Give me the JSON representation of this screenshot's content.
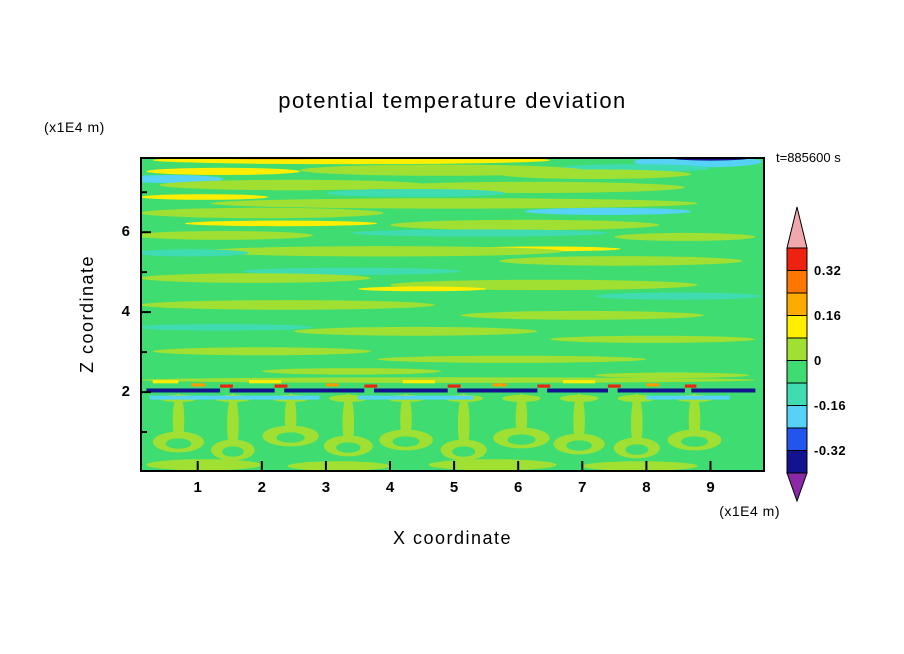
{
  "chart_data": {
    "type": "heatmap",
    "title": "potential temperature deviation",
    "time_label": "t=885600 s",
    "x_axis": {
      "label": "X coordinate",
      "units": "(x1E4 m)",
      "range": [
        0.1,
        9.85
      ],
      "major_ticks": [
        1,
        2,
        3,
        4,
        5,
        6,
        7,
        8,
        9
      ]
    },
    "z_axis": {
      "label": "Z coordinate",
      "units": "(x1E4 m)",
      "range": [
        0,
        7.88
      ],
      "major_ticks": [
        2,
        4,
        6
      ],
      "minor_ticks": [
        1,
        3,
        5,
        7
      ]
    },
    "colorbar": {
      "contour_interval": 0.08,
      "labels": [
        {
          "text": "0.32",
          "boundary_index": 1
        },
        {
          "text": "0.16",
          "boundary_index": 3
        },
        {
          "text": "0",
          "boundary_index": 5
        },
        {
          "text": "-0.16",
          "boundary_index": 7
        },
        {
          "text": "-0.32",
          "boundary_index": 9
        }
      ],
      "band_colors_top_to_bottom": [
        "#ee2211",
        "#ff7700",
        "#ffaa00",
        "#ffee00",
        "#a0e032",
        "#3fdc71",
        "#3edcb0",
        "#55d2f5",
        "#2255ee",
        "#131390"
      ],
      "arrow_top_color": "#f0a8ac",
      "arrow_bottom_color": "#8a28a8"
    },
    "palette": {
      "bg": "#3fdc71",
      "yg": "#a0e032",
      "tq": "#3edcb0",
      "cy": "#55d2f5",
      "ye": "#ffee00",
      "or": "#ff9900",
      "rd": "#ee2211",
      "nv": "#131390"
    },
    "field": {
      "background": "bg",
      "streaks": [
        [
          3.4,
          7.8,
          3.1,
          0.1,
          "ye"
        ],
        [
          2.2,
          7.88,
          1.3,
          0.06,
          "or"
        ],
        [
          8.8,
          7.76,
          1.0,
          0.14,
          "cy"
        ],
        [
          9.0,
          7.85,
          0.6,
          0.06,
          "nv"
        ],
        [
          7.8,
          7.6,
          1.2,
          0.1,
          "tq"
        ],
        [
          1.4,
          7.52,
          1.2,
          0.09,
          "ye"
        ],
        [
          4.8,
          7.55,
          2.2,
          0.14,
          "yg"
        ],
        [
          7.2,
          7.45,
          1.5,
          0.12,
          "yg"
        ],
        [
          0.6,
          7.33,
          0.8,
          0.1,
          "cy"
        ],
        [
          2.5,
          7.18,
          2.1,
          0.13,
          "yg"
        ],
        [
          6.2,
          7.12,
          2.4,
          0.14,
          "yg"
        ],
        [
          4.4,
          6.98,
          1.4,
          0.1,
          "tq"
        ],
        [
          1.1,
          6.88,
          1.0,
          0.07,
          "ye"
        ],
        [
          5.0,
          6.72,
          3.8,
          0.13,
          "yg"
        ],
        [
          7.4,
          6.52,
          1.3,
          0.09,
          "cy"
        ],
        [
          2.0,
          6.48,
          1.9,
          0.13,
          "yg"
        ],
        [
          2.3,
          6.22,
          1.5,
          0.07,
          "ye"
        ],
        [
          6.1,
          6.18,
          2.1,
          0.13,
          "yg"
        ],
        [
          5.4,
          5.98,
          2.0,
          0.09,
          "tq"
        ],
        [
          1.4,
          5.92,
          1.4,
          0.11,
          "yg"
        ],
        [
          8.6,
          5.88,
          1.1,
          0.1,
          "yg"
        ],
        [
          6.4,
          5.58,
          1.2,
          0.06,
          "ye"
        ],
        [
          3.9,
          5.52,
          2.8,
          0.13,
          "yg"
        ],
        [
          0.9,
          5.48,
          0.9,
          0.09,
          "tq"
        ],
        [
          7.6,
          5.28,
          1.9,
          0.12,
          "yg"
        ],
        [
          3.4,
          5.02,
          1.7,
          0.09,
          "tq"
        ],
        [
          1.9,
          4.85,
          1.8,
          0.12,
          "yg"
        ],
        [
          6.4,
          4.68,
          2.4,
          0.13,
          "yg"
        ],
        [
          4.5,
          4.58,
          1.0,
          0.06,
          "ye"
        ],
        [
          8.5,
          4.4,
          1.3,
          0.09,
          "tq"
        ],
        [
          2.4,
          4.18,
          2.3,
          0.12,
          "yg"
        ],
        [
          7.0,
          3.92,
          1.9,
          0.11,
          "yg"
        ],
        [
          1.4,
          3.62,
          1.4,
          0.08,
          "tq"
        ],
        [
          4.4,
          3.52,
          1.9,
          0.11,
          "yg"
        ],
        [
          8.1,
          3.32,
          1.6,
          0.09,
          "yg"
        ],
        [
          2.0,
          3.02,
          1.7,
          0.1,
          "yg"
        ],
        [
          5.9,
          2.82,
          2.1,
          0.09,
          "yg"
        ],
        [
          3.4,
          2.52,
          1.4,
          0.08,
          "yg"
        ],
        [
          8.4,
          2.42,
          1.2,
          0.07,
          "yg"
        ],
        [
          4.9,
          2.3,
          4.8,
          0.07,
          "yg"
        ]
      ],
      "inversion_line": {
        "z": 2.04,
        "thickness": 0.1,
        "color": "nv",
        "segments": [
          [
            0.2,
            1.35
          ],
          [
            1.5,
            2.2
          ],
          [
            2.35,
            3.6
          ],
          [
            3.75,
            4.9
          ],
          [
            5.05,
            6.3
          ],
          [
            6.45,
            7.4
          ],
          [
            7.55,
            8.6
          ],
          [
            8.7,
            9.7
          ]
        ]
      },
      "warm_flecks": [
        {
          "color": "rd",
          "z": 2.15,
          "thickness": 0.08,
          "segments": [
            [
              1.35,
              1.55
            ],
            [
              2.2,
              2.4
            ],
            [
              3.6,
              3.8
            ],
            [
              4.9,
              5.1
            ],
            [
              6.3,
              6.5
            ],
            [
              7.4,
              7.6
            ],
            [
              8.6,
              8.78
            ]
          ]
        },
        {
          "color": "or",
          "z": 2.18,
          "thickness": 0.08,
          "segments": [
            [
              0.9,
              1.12
            ],
            [
              3.0,
              3.2
            ],
            [
              5.6,
              5.82
            ],
            [
              8.0,
              8.2
            ]
          ]
        },
        {
          "color": "ye",
          "z": 2.26,
          "thickness": 0.08,
          "segments": [
            [
              1.8,
              2.3
            ],
            [
              4.2,
              4.7
            ],
            [
              6.7,
              7.2
            ],
            [
              0.3,
              0.7
            ]
          ]
        }
      ],
      "cool_streaks": {
        "z": 1.86,
        "thickness": 0.1,
        "color": "cy",
        "segments": [
          [
            0.25,
            2.9
          ],
          [
            3.5,
            5.3
          ],
          [
            8.0,
            9.3
          ]
        ]
      },
      "plumes": {
        "color": "yg",
        "top_z": 1.84,
        "x_centers": [
          0.7,
          1.55,
          2.45,
          3.35,
          4.25,
          5.15,
          6.05,
          6.95,
          7.85,
          8.75
        ],
        "cap_z": [
          0.75,
          0.55,
          0.9,
          0.65,
          0.8,
          0.55,
          0.85,
          0.7,
          0.6,
          0.8
        ],
        "cap_rx": [
          0.4,
          0.34,
          0.44,
          0.38,
          0.42,
          0.36,
          0.44,
          0.4,
          0.36,
          0.42
        ]
      },
      "bottom_patches": [
        [
          1.1,
          0.18,
          0.9,
          0.14
        ],
        [
          3.2,
          0.15,
          0.8,
          0.12
        ],
        [
          5.6,
          0.18,
          1.0,
          0.14
        ],
        [
          7.9,
          0.15,
          0.9,
          0.12
        ]
      ]
    }
  }
}
